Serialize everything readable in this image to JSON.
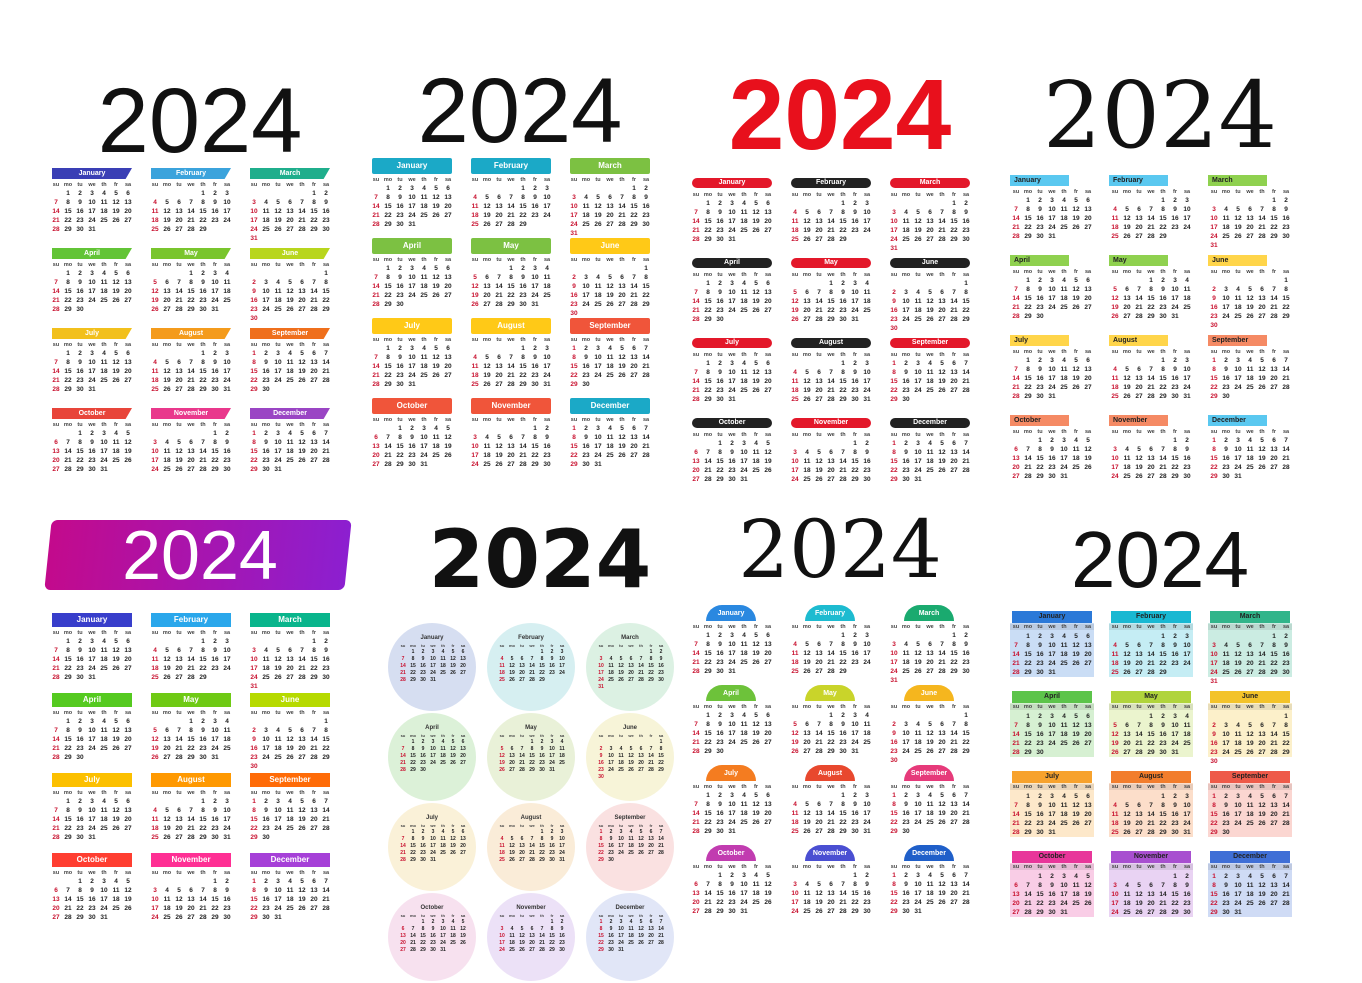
{
  "year": "2024",
  "weekdays": [
    "su",
    "mo",
    "tu",
    "we",
    "th",
    "fr",
    "sa"
  ],
  "months": [
    {
      "name": "January",
      "start": 1,
      "days": 31
    },
    {
      "name": "February",
      "start": 4,
      "days": 29
    },
    {
      "name": "March",
      "start": 5,
      "days": 31
    },
    {
      "name": "April",
      "start": 1,
      "days": 30
    },
    {
      "name": "May",
      "start": 3,
      "days": 31
    },
    {
      "name": "June",
      "start": 6,
      "days": 30
    },
    {
      "name": "July",
      "start": 1,
      "days": 31
    },
    {
      "name": "August",
      "start": 4,
      "days": 31
    },
    {
      "name": "September",
      "start": 0,
      "days": 30
    },
    {
      "name": "October",
      "start": 2,
      "days": 31
    },
    {
      "name": "November",
      "start": 5,
      "days": 30
    },
    {
      "name": "December",
      "start": 0,
      "days": 31
    }
  ],
  "palettes": {
    "rainbow": [
      "#3a3fb5",
      "#3ba3dc",
      "#1fae8c",
      "#62c436",
      "#79c52d",
      "#b8d61d",
      "#f2c01c",
      "#f49b1c",
      "#ef6f1c",
      "#e8453a",
      "#e9388c",
      "#9a45c4"
    ],
    "p2": [
      "#1ba9c7",
      "#1ba9c7",
      "#7cc142",
      "#7cc142",
      "#7cc142",
      "#ffc917",
      "#ffc917",
      "#ffc917",
      "#f0553a",
      "#f0553a",
      "#f0553a",
      "#1ba9c7"
    ],
    "p3": [
      "#e3182a",
      "#222222",
      "#e3182a",
      "#222222",
      "#e3182a",
      "#222222",
      "#e3182a",
      "#222222",
      "#e3182a",
      "#222222",
      "#e3182a",
      "#222222"
    ],
    "p4": [
      "#5ac8f0",
      "#5ac8f0",
      "#8fd14f",
      "#8fd14f",
      "#8fd14f",
      "#ffd54a",
      "#ffd54a",
      "#ffd54a",
      "#f58a64",
      "#f58a64",
      "#f58a64",
      "#5ac8f0"
    ],
    "p6": [
      "#8aa0d8",
      "#8ad0d8",
      "#9ad8b0",
      "#9ad890",
      "#c0d890",
      "#e8e090",
      "#f0d890",
      "#f0c890",
      "#f0a8a8",
      "#e8a8d0",
      "#c8a8e8",
      "#a8b8e8"
    ],
    "p7": [
      "#2a88e0",
      "#1dbbd0",
      "#1aaa6f",
      "#6dc23a",
      "#c9d42a",
      "#f5b61e",
      "#f47c20",
      "#e8482e",
      "#e63a7a",
      "#c13cb0",
      "#4a4fd2",
      "#1f5fc9"
    ],
    "p8": [
      "#2b79d8",
      "#19b8d2",
      "#31b58a",
      "#5cc44a",
      "#b0d43c",
      "#f3c32a",
      "#f7a22d",
      "#f27d2c",
      "#ee5a49",
      "#e8369a",
      "#a84fd0",
      "#3f6fd6"
    ]
  },
  "colors": {
    "year_red": "#e8101c",
    "year_black": "#111111",
    "sunday": "#c8102e"
  }
}
